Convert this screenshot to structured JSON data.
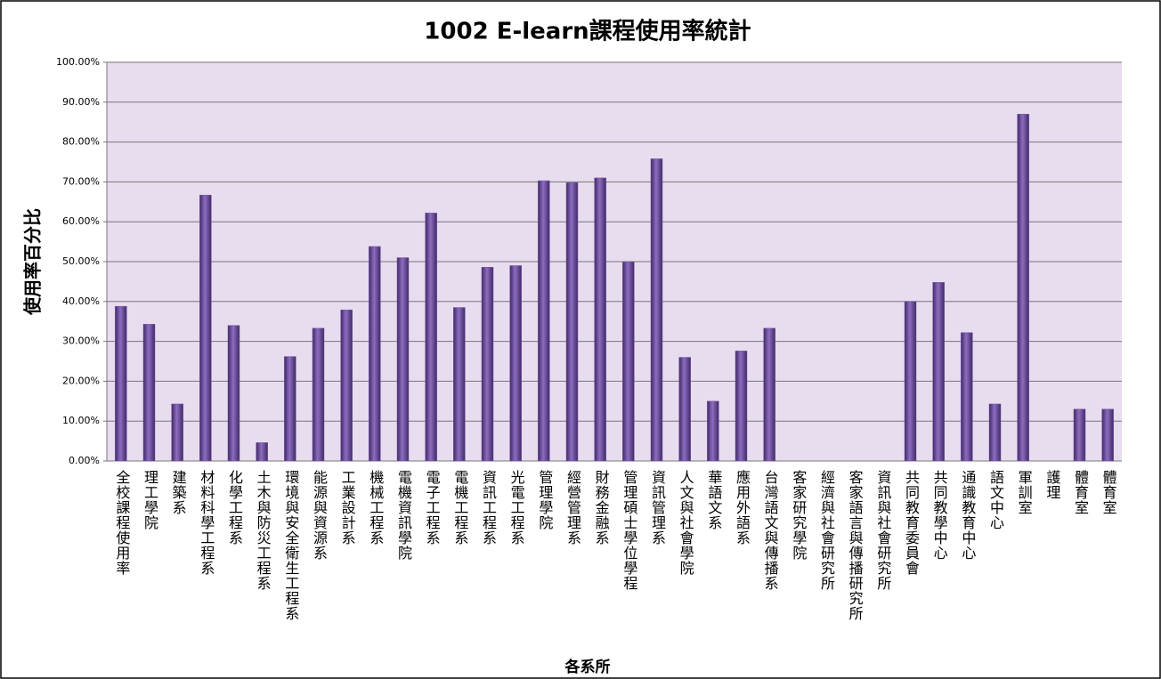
{
  "chart_data": {
    "type": "bar",
    "title": "1002 E-learn課程使用率統計",
    "y_label": "使用率百分比",
    "x_label": "各系所",
    "categories": [
      "全校課程使用率",
      "理工學院",
      "建築系",
      "材料科學工程系",
      "化學工程系",
      "土木與防災工程系",
      "環境與安全衛生工程系",
      "能源與資源系",
      "工業設計系",
      "機械工程系",
      "電機資訊學院",
      "電子工程系",
      "電機工程系",
      "資訊工程系",
      "光電工程系",
      "管理學院",
      "經營管理系",
      "財務金融系",
      "管理碩士學位學程",
      "資訊管理系",
      "人文與社會學院",
      "華語文系",
      "應用外語系",
      "台灣語文與傳播系",
      "客家研究學院",
      "經濟與社會研究所",
      "客家語言與傳播研究所",
      "資訊與社會研究所",
      "共同教育委員會",
      "共同教學中心",
      "通識教育中心",
      "語文中心",
      "軍訓室",
      "護理",
      "體育室",
      "體育室"
    ],
    "values": [
      38.8,
      34.3,
      14.3,
      66.7,
      34,
      4.6,
      26.2,
      33.3,
      37.9,
      53.8,
      51,
      62.2,
      38.5,
      48.6,
      49,
      70.3,
      69.8,
      71,
      50,
      75.8,
      26,
      15,
      27.6,
      33.3,
      0,
      0,
      0,
      0,
      40,
      44.8,
      32.2,
      14.3,
      87,
      0,
      13,
      13
    ],
    "color": "#7a58a8",
    "ylim": [
      0,
      100
    ],
    "yticks": [
      {
        "value": 0,
        "label": "0.00%"
      },
      {
        "value": 10,
        "label": "10.00%"
      },
      {
        "value": 20,
        "label": "20.00%"
      },
      {
        "value": 30,
        "label": "30.00%"
      },
      {
        "value": 40,
        "label": "40.00%"
      },
      {
        "value": 50,
        "label": "50.00%"
      },
      {
        "value": 60,
        "label": "60.00%"
      },
      {
        "value": 70,
        "label": "70.00%"
      },
      {
        "value": 80,
        "label": "80.00%"
      },
      {
        "value": 90,
        "label": "90.00%"
      },
      {
        "value": 100,
        "label": "100.00%"
      }
    ],
    "grid": true
  }
}
